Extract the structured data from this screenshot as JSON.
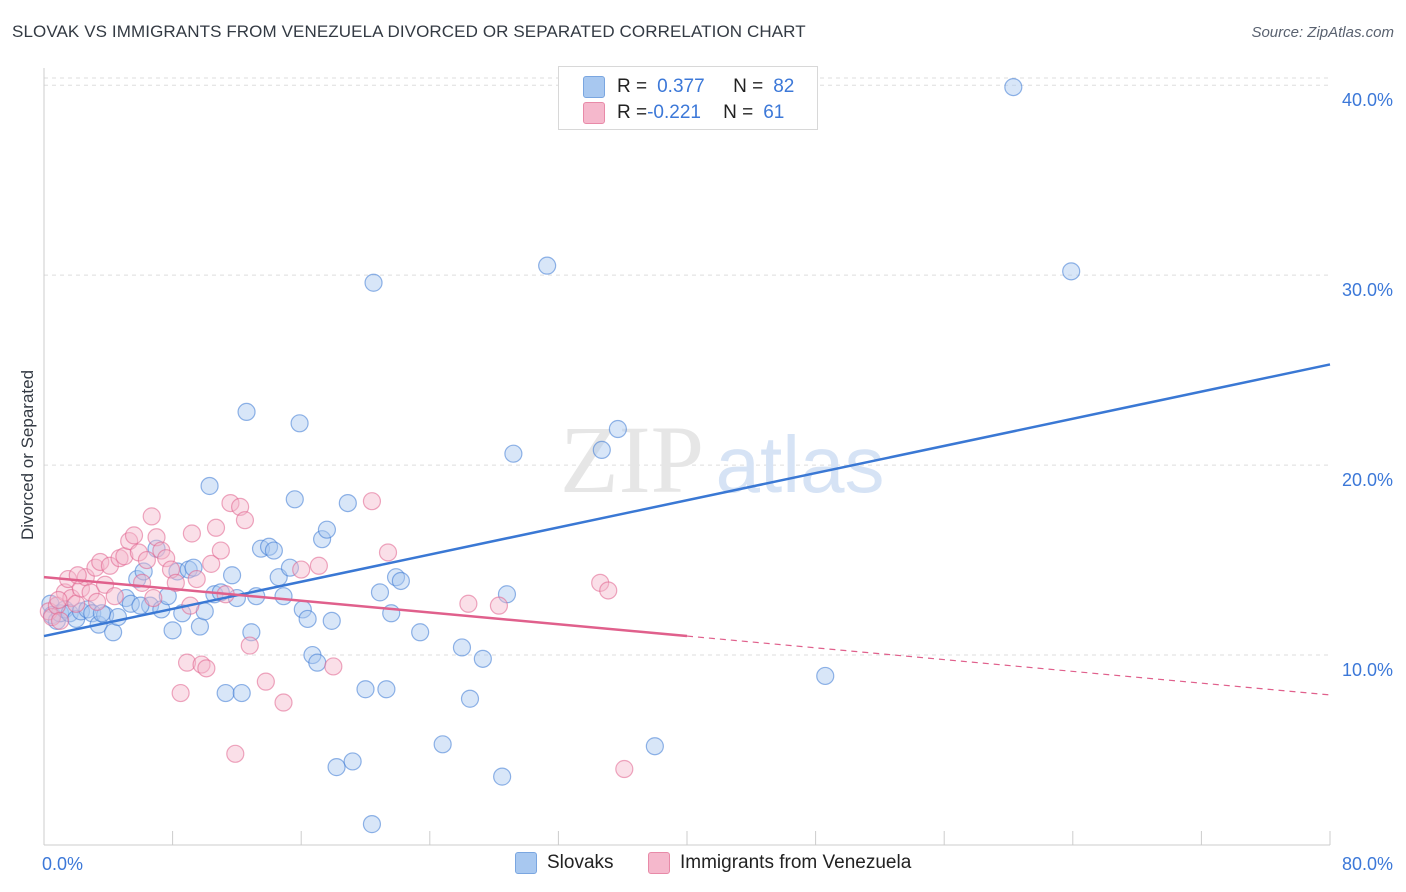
{
  "title": "SLOVAK VS IMMIGRANTS FROM VENEZUELA DIVORCED OR SEPARATED CORRELATION CHART",
  "source": "Source: ZipAtlas.com",
  "watermark": {
    "zip": "ZIP",
    "atlas": "atlas"
  },
  "legend": {
    "rows": [
      {
        "r_label": "R = ",
        "r_value": "0.377",
        "n_label": "N = ",
        "n_value": "82",
        "color": "#a8c8f0"
      },
      {
        "r_label": "R = ",
        "r_value": "-0.221",
        "n_label": "N = ",
        "n_value": "61",
        "color": "#f5b8cc"
      }
    ]
  },
  "bottom_legend": [
    {
      "label": "Slovaks",
      "color": "#a8c8f0"
    },
    {
      "label": "Immigrants from Venezuela",
      "color": "#f5b8cc"
    }
  ],
  "chart_data": {
    "type": "scatter",
    "title": "SLOVAK VS IMMIGRANTS FROM VENEZUELA DIVORCED OR SEPARATED CORRELATION CHART",
    "xlabel": "",
    "ylabel": "Divorced or Separated",
    "xlim": [
      0,
      80
    ],
    "ylim": [
      0,
      40.8
    ],
    "x_tick_labels": {
      "min": "0.0%",
      "max": "80.0%"
    },
    "y_ticks": [
      10,
      20,
      30,
      40
    ],
    "y_tick_labels": [
      "10.0%",
      "20.0%",
      "30.0%",
      "40.0%"
    ],
    "grid": true,
    "legend_position": "top-center",
    "series": [
      {
        "name": "Slovaks",
        "color": "#3a78d4",
        "fill": "#a8c8f0",
        "trend": {
          "x": [
            0,
            80
          ],
          "y": [
            11.0,
            25.3
          ],
          "dashed_from": null
        },
        "points": [
          [
            0.4,
            12.7
          ],
          [
            0.5,
            12.1
          ],
          [
            0.8,
            11.8
          ],
          [
            1.0,
            12.2
          ],
          [
            1.3,
            12.4
          ],
          [
            1.6,
            12.2
          ],
          [
            2.0,
            11.9
          ],
          [
            2.3,
            12.3
          ],
          [
            2.7,
            12.4
          ],
          [
            3.0,
            12.2
          ],
          [
            3.4,
            11.6
          ],
          [
            3.8,
            12.1
          ],
          [
            4.3,
            11.2
          ],
          [
            4.6,
            12.0
          ],
          [
            5.1,
            13.0
          ],
          [
            5.4,
            12.7
          ],
          [
            5.8,
            14.0
          ],
          [
            6.2,
            14.4
          ],
          [
            6.6,
            12.6
          ],
          [
            7.0,
            15.6
          ],
          [
            7.3,
            12.4
          ],
          [
            7.7,
            13.1
          ],
          [
            8.0,
            11.3
          ],
          [
            8.3,
            14.4
          ],
          [
            8.6,
            12.2
          ],
          [
            9.0,
            14.5
          ],
          [
            9.3,
            14.6
          ],
          [
            9.7,
            11.5
          ],
          [
            10.0,
            12.3
          ],
          [
            10.3,
            18.9
          ],
          [
            10.6,
            13.2
          ],
          [
            11.0,
            13.3
          ],
          [
            11.3,
            8.0
          ],
          [
            11.7,
            14.2
          ],
          [
            12.0,
            13.0
          ],
          [
            12.3,
            8.0
          ],
          [
            12.6,
            22.8
          ],
          [
            12.9,
            11.2
          ],
          [
            13.2,
            13.1
          ],
          [
            13.5,
            15.6
          ],
          [
            14.0,
            15.7
          ],
          [
            14.3,
            15.5
          ],
          [
            14.6,
            14.1
          ],
          [
            14.9,
            13.1
          ],
          [
            15.3,
            14.6
          ],
          [
            15.6,
            18.2
          ],
          [
            15.9,
            22.2
          ],
          [
            16.1,
            12.4
          ],
          [
            16.4,
            11.9
          ],
          [
            16.7,
            10.0
          ],
          [
            17.0,
            9.6
          ],
          [
            17.3,
            16.1
          ],
          [
            17.6,
            16.6
          ],
          [
            17.9,
            11.8
          ],
          [
            18.2,
            4.1
          ],
          [
            18.9,
            18.0
          ],
          [
            19.2,
            4.4
          ],
          [
            20.0,
            8.2
          ],
          [
            20.4,
            1.1
          ],
          [
            20.5,
            29.6
          ],
          [
            20.9,
            13.3
          ],
          [
            21.3,
            8.2
          ],
          [
            21.6,
            12.2
          ],
          [
            21.9,
            14.1
          ],
          [
            22.2,
            13.9
          ],
          [
            23.4,
            11.2
          ],
          [
            24.8,
            5.3
          ],
          [
            26.0,
            10.4
          ],
          [
            26.5,
            7.7
          ],
          [
            27.3,
            9.8
          ],
          [
            28.5,
            3.6
          ],
          [
            28.8,
            13.2
          ],
          [
            29.2,
            20.6
          ],
          [
            31.3,
            30.5
          ],
          [
            34.7,
            20.8
          ],
          [
            35.7,
            21.9
          ],
          [
            38.0,
            5.2
          ],
          [
            48.6,
            8.9
          ],
          [
            60.3,
            39.9
          ],
          [
            63.9,
            30.2
          ],
          [
            3.6,
            12.2
          ],
          [
            6.0,
            12.6
          ]
        ]
      },
      {
        "name": "Immigrants from Venezuela",
        "color": "#e0608c",
        "fill": "#f5b8cc",
        "trend": {
          "x": [
            0,
            40,
            80
          ],
          "y": [
            14.1,
            11.0,
            7.9
          ],
          "dashed_from": 40
        },
        "points": [
          [
            0.3,
            12.3
          ],
          [
            0.5,
            12.0
          ],
          [
            0.8,
            12.6
          ],
          [
            1.0,
            11.8
          ],
          [
            1.3,
            13.3
          ],
          [
            1.5,
            14.0
          ],
          [
            1.7,
            13.0
          ],
          [
            2.0,
            12.7
          ],
          [
            2.3,
            13.5
          ],
          [
            2.6,
            14.1
          ],
          [
            2.9,
            13.3
          ],
          [
            3.2,
            14.6
          ],
          [
            3.5,
            14.9
          ],
          [
            3.8,
            13.7
          ],
          [
            4.1,
            14.7
          ],
          [
            4.4,
            13.1
          ],
          [
            4.7,
            15.1
          ],
          [
            5.0,
            15.2
          ],
          [
            5.3,
            16.0
          ],
          [
            5.6,
            16.3
          ],
          [
            5.9,
            15.4
          ],
          [
            6.1,
            13.8
          ],
          [
            6.4,
            15.0
          ],
          [
            6.7,
            17.3
          ],
          [
            7.0,
            16.2
          ],
          [
            7.3,
            15.5
          ],
          [
            7.6,
            15.1
          ],
          [
            7.9,
            14.5
          ],
          [
            8.2,
            13.8
          ],
          [
            8.5,
            8.0
          ],
          [
            8.9,
            9.6
          ],
          [
            9.2,
            16.4
          ],
          [
            9.5,
            14.0
          ],
          [
            9.8,
            9.5
          ],
          [
            10.1,
            9.3
          ],
          [
            10.4,
            14.8
          ],
          [
            10.7,
            16.7
          ],
          [
            11.0,
            15.5
          ],
          [
            11.3,
            13.2
          ],
          [
            11.6,
            18.0
          ],
          [
            11.9,
            4.8
          ],
          [
            12.2,
            17.8
          ],
          [
            12.5,
            17.1
          ],
          [
            12.8,
            10.5
          ],
          [
            13.8,
            8.6
          ],
          [
            14.9,
            7.5
          ],
          [
            16.0,
            14.5
          ],
          [
            17.1,
            14.7
          ],
          [
            18.0,
            9.4
          ],
          [
            20.4,
            18.1
          ],
          [
            21.4,
            15.4
          ],
          [
            26.4,
            12.7
          ],
          [
            28.3,
            12.6
          ],
          [
            34.6,
            13.8
          ],
          [
            35.1,
            13.4
          ],
          [
            36.1,
            4.0
          ],
          [
            2.1,
            14.2
          ],
          [
            3.3,
            12.8
          ],
          [
            6.8,
            13.0
          ],
          [
            9.1,
            12.6
          ],
          [
            0.9,
            12.9
          ]
        ]
      }
    ]
  }
}
